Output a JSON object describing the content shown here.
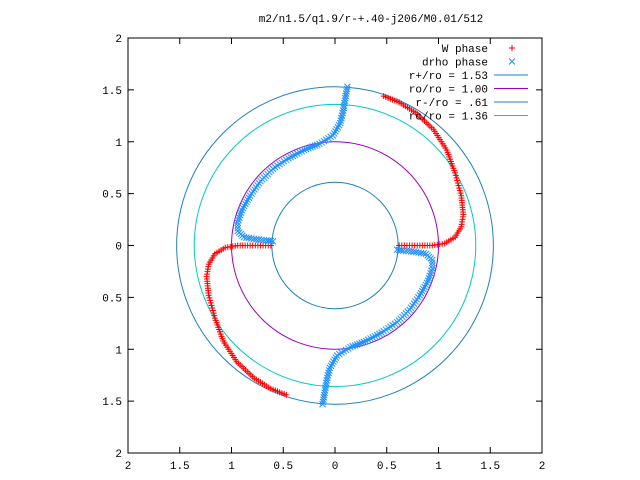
{
  "chart_data": {
    "type": "scatter",
    "title": "m2/n1.5/q1.9/r-+.40-j206/M0.01/512",
    "xlim": [
      -2,
      2
    ],
    "ylim": [
      -2,
      2
    ],
    "grid": false,
    "legend_position": "top-right",
    "x_tick_labels": [
      "2",
      "1.5",
      "1",
      "0.5",
      "0",
      "0.5",
      "1",
      "1.5",
      "2"
    ],
    "x_tick_values": [
      -2,
      -1.5,
      -1,
      -0.5,
      0,
      0.5,
      1,
      1.5,
      2
    ],
    "y_tick_labels": [
      "2",
      "1.5",
      "1",
      "0.5",
      "0",
      "0.5",
      "1",
      "1.5",
      "2"
    ],
    "y_tick_values": [
      2,
      1.5,
      1,
      0.5,
      0,
      -0.5,
      -1,
      -1.5,
      -2
    ],
    "series": [
      {
        "name": "W phase",
        "marker": "+",
        "color": "#ff0000",
        "arms": [
          [
            [
              0.47,
              1.44
            ],
            [
              0.62,
              1.38
            ],
            [
              0.78,
              1.28
            ],
            [
              0.95,
              1.12
            ],
            [
              1.08,
              0.92
            ],
            [
              1.16,
              0.7
            ],
            [
              1.22,
              0.48
            ],
            [
              1.24,
              0.3
            ],
            [
              1.22,
              0.18
            ],
            [
              1.16,
              0.08
            ],
            [
              1.06,
              0.02
            ],
            [
              0.94,
              0.0
            ],
            [
              0.82,
              0.0
            ],
            [
              0.72,
              0.0
            ],
            [
              0.62,
              0.0
            ]
          ],
          [
            [
              -0.47,
              -1.44
            ],
            [
              -0.62,
              -1.38
            ],
            [
              -0.78,
              -1.28
            ],
            [
              -0.95,
              -1.12
            ],
            [
              -1.08,
              -0.92
            ],
            [
              -1.16,
              -0.7
            ],
            [
              -1.22,
              -0.48
            ],
            [
              -1.24,
              -0.3
            ],
            [
              -1.22,
              -0.18
            ],
            [
              -1.16,
              -0.08
            ],
            [
              -1.06,
              -0.02
            ],
            [
              -0.94,
              0.0
            ],
            [
              -0.82,
              0.0
            ],
            [
              -0.72,
              0.0
            ],
            [
              -0.62,
              0.0
            ]
          ]
        ]
      },
      {
        "name": "drho phase",
        "marker": "x",
        "color": "#1e90ff",
        "arms": [
          [
            [
              0.12,
              1.53
            ],
            [
              0.1,
              1.42
            ],
            [
              0.08,
              1.3
            ],
            [
              0.05,
              1.18
            ],
            [
              -0.02,
              1.06
            ],
            [
              -0.15,
              0.98
            ],
            [
              -0.3,
              0.92
            ],
            [
              -0.45,
              0.84
            ],
            [
              -0.6,
              0.74
            ],
            [
              -0.72,
              0.62
            ],
            [
              -0.82,
              0.48
            ],
            [
              -0.9,
              0.34
            ],
            [
              -0.94,
              0.22
            ],
            [
              -0.94,
              0.14
            ],
            [
              -0.88,
              0.08
            ],
            [
              -0.76,
              0.06
            ],
            [
              -0.66,
              0.05
            ],
            [
              -0.6,
              0.04
            ]
          ],
          [
            [
              -0.12,
              -1.53
            ],
            [
              -0.1,
              -1.42
            ],
            [
              -0.08,
              -1.3
            ],
            [
              -0.05,
              -1.18
            ],
            [
              0.02,
              -1.06
            ],
            [
              0.15,
              -0.98
            ],
            [
              0.3,
              -0.92
            ],
            [
              0.45,
              -0.84
            ],
            [
              0.6,
              -0.74
            ],
            [
              0.72,
              -0.62
            ],
            [
              0.82,
              -0.48
            ],
            [
              0.9,
              -0.34
            ],
            [
              0.94,
              -0.22
            ],
            [
              0.94,
              -0.14
            ],
            [
              0.88,
              -0.08
            ],
            [
              0.76,
              -0.06
            ],
            [
              0.66,
              -0.05
            ],
            [
              0.6,
              -0.04
            ]
          ]
        ]
      }
    ],
    "circles": [
      {
        "name": "r+/ro = 1.53",
        "r": 1.53,
        "color": "#2080c0"
      },
      {
        "name": "ro/ro = 1.00",
        "r": 1.0,
        "color": "#a000c0"
      },
      {
        "name": "r-/ro = .61",
        "r": 0.61,
        "color": "#2080c0"
      },
      {
        "name": "rc/ro = 1.36",
        "r": 1.36,
        "color": "#00c8c8"
      }
    ]
  }
}
